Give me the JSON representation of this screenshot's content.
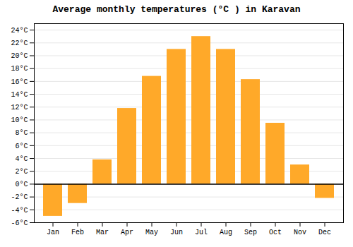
{
  "chart_data": {
    "type": "bar",
    "title": "Average monthly temperatures (°C ) in Karavan",
    "categories": [
      "Jan",
      "Feb",
      "Mar",
      "Apr",
      "May",
      "Jun",
      "Jul",
      "Aug",
      "Sep",
      "Oct",
      "Nov",
      "Dec"
    ],
    "values": [
      -5.0,
      -3.0,
      3.8,
      11.8,
      16.8,
      21.0,
      23.0,
      21.0,
      16.3,
      9.5,
      3.0,
      -2.2
    ],
    "color": "#FFA929",
    "ylim": [
      -6,
      25
    ],
    "yticks": [
      {
        "value": -6,
        "label": "-6°C"
      },
      {
        "value": -4,
        "label": "-4°C"
      },
      {
        "value": -2,
        "label": "-2°C"
      },
      {
        "value": 0,
        "label": "0°C"
      },
      {
        "value": 2,
        "label": "2°C"
      },
      {
        "value": 4,
        "label": "4°C"
      },
      {
        "value": 6,
        "label": "6°C"
      },
      {
        "value": 8,
        "label": "8°C"
      },
      {
        "value": 10,
        "label": "10°C"
      },
      {
        "value": 12,
        "label": "12°C"
      },
      {
        "value": 14,
        "label": "14°C"
      },
      {
        "value": 16,
        "label": "16°C"
      },
      {
        "value": 18,
        "label": "18°C"
      },
      {
        "value": 20,
        "label": "20°C"
      },
      {
        "value": 22,
        "label": "22°C"
      },
      {
        "value": 24,
        "label": "24°C"
      }
    ],
    "grid": true
  }
}
